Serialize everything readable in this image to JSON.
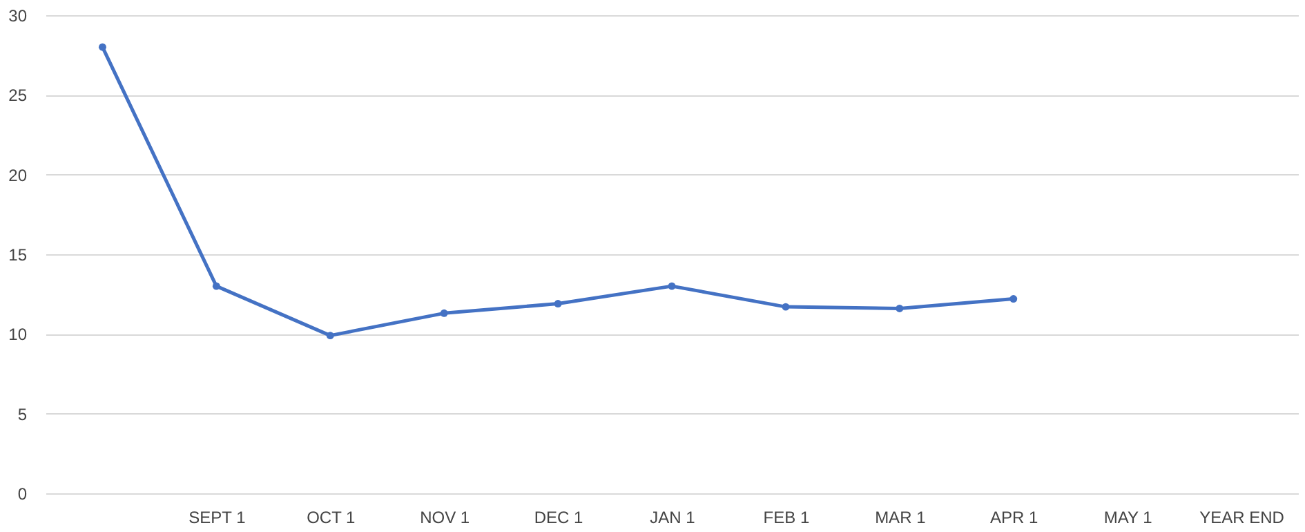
{
  "chart_data": {
    "type": "line",
    "categories": [
      null,
      "SEPT 1",
      "OCT 1",
      "NOV 1",
      "DEC 1",
      "JAN 1",
      "FEB 1",
      "MAR 1",
      "APR 1",
      "MAY 1",
      "YEAR END"
    ],
    "series": [
      {
        "color": "#4472c4",
        "values": [
          28,
          13,
          9.9,
          11.3,
          11.9,
          13,
          11.7,
          11.6,
          12.2,
          null,
          null
        ]
      }
    ],
    "ylim": [
      0,
      30
    ],
    "yticks": [
      0,
      5,
      10,
      15,
      20,
      25,
      30
    ],
    "grid": "y",
    "marker": "circle",
    "line_style": "solid"
  }
}
